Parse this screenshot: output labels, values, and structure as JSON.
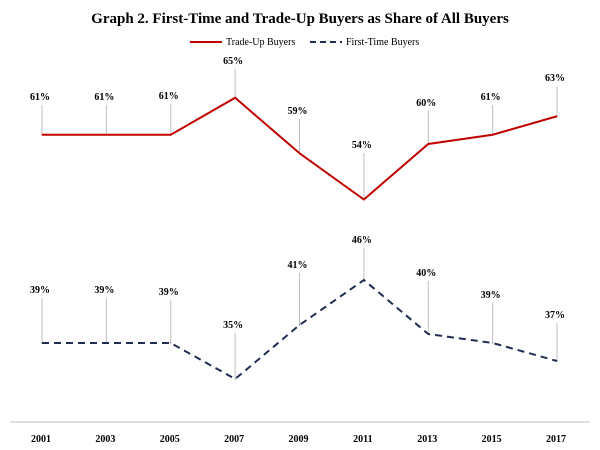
{
  "chart_data": {
    "type": "line",
    "title": "Graph 2. First-Time and Trade-Up Buyers as Share of All Buyers",
    "xlabel": "",
    "ylabel": "",
    "grid": false,
    "legend_position": "top-center",
    "categories": [
      "2001",
      "2003",
      "2005",
      "2007",
      "2009",
      "2011",
      "2013",
      "2015",
      "2017"
    ],
    "series": [
      {
        "name": "Trade-Up Buyers",
        "color": "#c00000",
        "style": "solid",
        "values": [
          61,
          61,
          61,
          65,
          59,
          54,
          60,
          61,
          63
        ],
        "labels": [
          "61%",
          "61%",
          "61%",
          "65%",
          "59%",
          "54%",
          "60%",
          "61%",
          "63%"
        ]
      },
      {
        "name": "First-Time Buyers",
        "color": "#1f2d52",
        "style": "dashed",
        "values": [
          39,
          39,
          39,
          35,
          41,
          46,
          40,
          39,
          37
        ],
        "labels": [
          "39%",
          "39%",
          "39%",
          "35%",
          "41%",
          "46%",
          "40%",
          "39%",
          "37%"
        ]
      }
    ]
  }
}
